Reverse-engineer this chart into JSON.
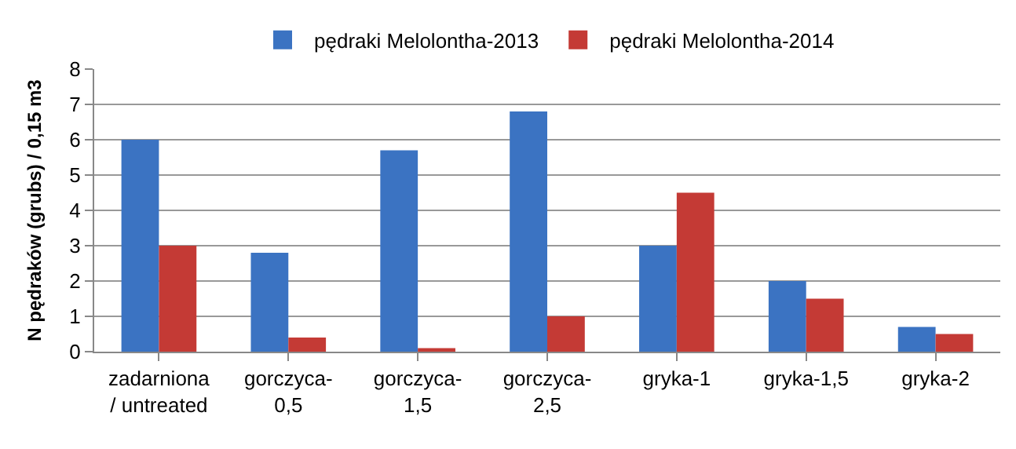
{
  "chart_data": {
    "type": "bar",
    "ylabel": "N pędraków (grubs) / 0,15 m3",
    "categories": [
      "zadarniona\n/ untreated",
      "gorczyca-\n0,5",
      "gorczyca-\n1,5",
      "gorczyca-\n2,5",
      "gryka-1",
      "gryka-1,5",
      "gryka-2"
    ],
    "series": [
      {
        "name": "pędraki Melolontha-2013",
        "color": "#3b73c2",
        "values": [
          6,
          2.8,
          5.7,
          6.8,
          3,
          2,
          0.7
        ]
      },
      {
        "name": "pędraki Melolontha-2014",
        "color": "#c43a35",
        "values": [
          3,
          0.4,
          0.1,
          1,
          4.5,
          1.5,
          0.5
        ]
      }
    ],
    "ylim": [
      0,
      8
    ],
    "yticks": [
      0,
      1,
      2,
      3,
      4,
      5,
      6,
      7,
      8
    ],
    "grid": "y",
    "legend": "top"
  }
}
